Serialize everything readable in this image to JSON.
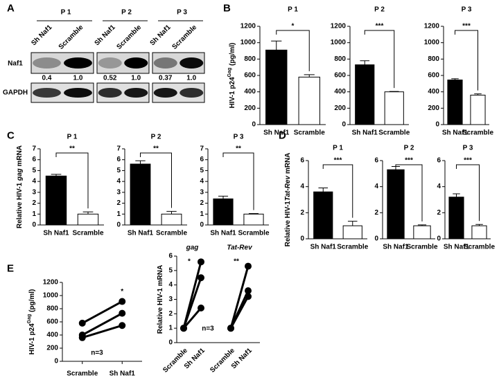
{
  "panel_labels": [
    "A",
    "B",
    "C",
    "D",
    "E"
  ],
  "blot": {
    "rows": [
      "Naf1",
      "GAPDH"
    ],
    "groups": [
      {
        "title": "P 1",
        "lanes": [
          "Sh Naf1",
          "Scramble"
        ],
        "ratios": [
          0.4,
          "1.0"
        ]
      },
      {
        "title": "P 2",
        "lanes": [
          "Sh Naf1",
          "Scramble"
        ],
        "ratios": [
          0.52,
          "1.0"
        ]
      },
      {
        "title": "P 3",
        "lanes": [
          "Sh Naf1",
          "Scramble"
        ],
        "ratios": [
          0.37,
          "1.0"
        ]
      }
    ]
  },
  "chart_data": [
    {
      "type": "bar",
      "title": "P 1",
      "y_label": [
        {
          "text": "HIV-1 p24"
        },
        {
          "text": "Gag",
          "style": "sup"
        },
        {
          "text": " (pg/ml)"
        }
      ],
      "categories": [
        "Sh Naf1",
        "Scramble"
      ],
      "values": [
        910,
        580
      ],
      "errors": [
        110,
        30
      ],
      "colors": [
        "#000000",
        "#ffffff"
      ],
      "ylim": [
        0,
        1200
      ],
      "yticks": [
        0,
        200,
        400,
        600,
        800,
        1000,
        1200
      ],
      "significance": "*"
    },
    {
      "type": "bar",
      "title": "P 2",
      "categories": [
        "Sh Naf1",
        "Scramble"
      ],
      "values": [
        730,
        400
      ],
      "errors": [
        50,
        5
      ],
      "colors": [
        "#000000",
        "#ffffff"
      ],
      "ylim": [
        0,
        1200
      ],
      "yticks": [
        0,
        200,
        400,
        600,
        800,
        1000,
        1200
      ],
      "significance": "***"
    },
    {
      "type": "bar",
      "title": "P 3",
      "categories": [
        "Sh Naf1",
        "Scramble"
      ],
      "values": [
        545,
        360
      ],
      "errors": [
        15,
        15
      ],
      "colors": [
        "#000000",
        "#ffffff"
      ],
      "ylim": [
        0,
        1200
      ],
      "yticks": [
        0,
        200,
        400,
        600,
        800,
        1000,
        1200
      ],
      "significance": "***"
    },
    {
      "type": "bar",
      "title": "P 1",
      "y_label": [
        {
          "text": "Relative HIV-1 "
        },
        {
          "text": "gag",
          "style": "italic"
        },
        {
          "text": " mRNA"
        }
      ],
      "categories": [
        "Sh Naf1",
        "Scramble"
      ],
      "values": [
        4.5,
        1.0
      ],
      "errors": [
        0.15,
        0.2
      ],
      "colors": [
        "#000000",
        "#ffffff"
      ],
      "ylim": [
        0,
        7
      ],
      "yticks": [
        0,
        1,
        2,
        3,
        4,
        5,
        6,
        7
      ],
      "significance": "**"
    },
    {
      "type": "bar",
      "title": "P 2",
      "categories": [
        "Sh Naf1",
        "Scramble"
      ],
      "values": [
        5.6,
        1.0
      ],
      "errors": [
        0.3,
        0.25
      ],
      "colors": [
        "#000000",
        "#ffffff"
      ],
      "ylim": [
        0,
        7
      ],
      "yticks": [
        0,
        1,
        2,
        3,
        4,
        5,
        6,
        7
      ],
      "significance": "**"
    },
    {
      "type": "bar",
      "title": "P 3",
      "categories": [
        "Sh Naf1",
        "Scramble"
      ],
      "values": [
        2.4,
        1.0
      ],
      "errors": [
        0.25,
        0.05
      ],
      "colors": [
        "#000000",
        "#ffffff"
      ],
      "ylim": [
        0,
        7
      ],
      "yticks": [
        0,
        1,
        2,
        3,
        4,
        5,
        6,
        7
      ],
      "significance": "**"
    },
    {
      "type": "bar",
      "title": "P 1",
      "y_label": [
        {
          "text": "Relative HIV-1"
        },
        {
          "text": "Tat-Rev",
          "style": "italic"
        },
        {
          "text": " mRNA"
        }
      ],
      "categories": [
        "Sh Naf1",
        "Scramble"
      ],
      "values": [
        3.6,
        1.0
      ],
      "errors": [
        0.3,
        0.35
      ],
      "colors": [
        "#000000",
        "#ffffff"
      ],
      "ylim": [
        0,
        6
      ],
      "yticks": [
        0,
        2,
        4,
        6
      ],
      "significance": "***"
    },
    {
      "type": "bar",
      "title": "P 2",
      "categories": [
        "Sh Naf1",
        "Scramble"
      ],
      "values": [
        5.3,
        1.0
      ],
      "errors": [
        0.25,
        0.07
      ],
      "colors": [
        "#000000",
        "#ffffff"
      ],
      "ylim": [
        0,
        6
      ],
      "yticks": [
        0,
        2,
        4,
        6
      ],
      "significance": "***"
    },
    {
      "type": "bar",
      "title": "P 3",
      "categories": [
        "Sh Naf1",
        "Scramble"
      ],
      "values": [
        3.2,
        1.0
      ],
      "errors": [
        0.25,
        0.1
      ],
      "colors": [
        "#000000",
        "#ffffff"
      ],
      "ylim": [
        0,
        6
      ],
      "yticks": [
        0,
        2,
        4,
        6
      ],
      "significance": "***"
    },
    {
      "type": "line",
      "y_label": [
        {
          "text": "HIV-1 p24"
        },
        {
          "text": "Gag",
          "style": "sup"
        },
        {
          "text": " (pg/ml)"
        }
      ],
      "categories": [
        "Scramble",
        "Sh Naf1"
      ],
      "color": "#000000",
      "series": [
        {
          "values": [
            580,
            910
          ]
        },
        {
          "values": [
            400,
            730
          ]
        },
        {
          "values": [
            360,
            545
          ]
        }
      ],
      "ylim": [
        0,
        1200
      ],
      "yticks": [
        0,
        200,
        400,
        600,
        800,
        1000,
        1200
      ],
      "significance": "*",
      "annotation": "n=3"
    },
    {
      "type": "line",
      "y_label": [
        {
          "text": "Relative HIV-1 mRNA"
        }
      ],
      "color": "#000000",
      "group_name_style": "italic",
      "ylim": [
        0,
        6
      ],
      "yticks": [
        0,
        1,
        2,
        3,
        4,
        5,
        6
      ],
      "annotation": "n=3",
      "groups": [
        {
          "name": "gag",
          "categories": [
            "Scramble",
            "Sh Naf1"
          ],
          "significance": "*",
          "series": [
            {
              "values": [
                1,
                5.6
              ]
            },
            {
              "values": [
                1,
                4.5
              ]
            },
            {
              "values": [
                1,
                2.4
              ]
            }
          ]
        },
        {
          "name": "Tat-Rev",
          "categories": [
            "Scramble",
            "Sh Naf1"
          ],
          "significance": "**",
          "series": [
            {
              "values": [
                1,
                5.3
              ]
            },
            {
              "values": [
                1,
                3.6
              ]
            },
            {
              "values": [
                1,
                3.2
              ]
            }
          ]
        }
      ]
    }
  ]
}
